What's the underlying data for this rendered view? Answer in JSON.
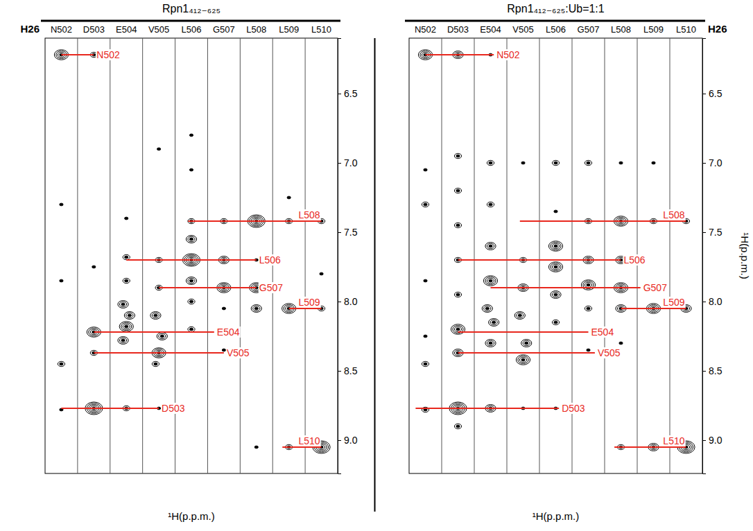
{
  "chart_data": [
    {
      "type": "nmr_strips",
      "title": "Rpn1₄₁₂₋₆₂₅",
      "label": "H26",
      "categories": [
        "N502",
        "D503",
        "E504",
        "V505",
        "L506",
        "G507",
        "L508",
        "L509",
        "L510"
      ],
      "xlim": [
        0,
        9
      ],
      "ylim": [
        6.1,
        9.24
      ],
      "yticks": [
        6.5,
        {
          "value": 7,
          "label": "7.0"
        },
        7.5,
        {
          "value": 8,
          "label": "8.0"
        },
        8.5,
        {
          "value": 9,
          "label": "9.0"
        }
      ],
      "x_axis_label": "¹H(p.p.m.)",
      "peaks": {
        "color": "#000000",
        "x": [
          0.5,
          0.5,
          0.5,
          0.5,
          0.5,
          1.5,
          1.5,
          1.5,
          1.5,
          1.5,
          2.5,
          2.5,
          2.5,
          2.4,
          2.6,
          2.5,
          2.4,
          2.5,
          3.5,
          3.5,
          3.5,
          3.4,
          3.6,
          3.5,
          3.4,
          3.5,
          4.5,
          4.5,
          4.5,
          4.5,
          4.5,
          4.5,
          4.5,
          4.5,
          5.5,
          5.5,
          5.5,
          5.5,
          5.5,
          6.5,
          6.5,
          6.5,
          6.5,
          6.5,
          7.5,
          7.5,
          7.5,
          7.5,
          8.5,
          8.5,
          8.5,
          8.5
        ],
        "y": [
          6.22,
          7.3,
          7.85,
          8.45,
          8.78,
          6.22,
          7.75,
          8.22,
          8.37,
          8.77,
          7.4,
          7.68,
          7.85,
          8.02,
          8.1,
          8.18,
          8.28,
          8.77,
          6.9,
          7.7,
          7.9,
          8.1,
          8.25,
          8.37,
          8.45,
          8.77,
          6.8,
          7.05,
          7.42,
          7.55,
          7.7,
          7.85,
          8.0,
          8.2,
          7.42,
          7.7,
          7.9,
          8.05,
          8.35,
          7.42,
          7.7,
          7.9,
          8.05,
          9.05,
          7.25,
          7.42,
          8.05,
          9.05,
          7.42,
          7.8,
          8.05,
          9.05
        ],
        "intensity": [
          4,
          1,
          1,
          2,
          1,
          2,
          1,
          4,
          2,
          5,
          1,
          2,
          2,
          3,
          3,
          4,
          3,
          2,
          1,
          2,
          2,
          3,
          3,
          4,
          2,
          1,
          1,
          1,
          2,
          3,
          5,
          3,
          2,
          2,
          2,
          3,
          4,
          1,
          1,
          5,
          1,
          4,
          3,
          1,
          1,
          2,
          4,
          2,
          2,
          1,
          2,
          5
        ]
      },
      "assignments": {
        "color": "#e8281e",
        "labels": [
          "N502",
          "L508",
          "L506",
          "G507",
          "L509",
          "E504",
          "V505",
          "D503",
          "L510"
        ],
        "y": [
          6.22,
          7.42,
          7.7,
          7.9,
          8.05,
          8.22,
          8.37,
          8.77,
          9.05
        ],
        "from": [
          0.5,
          4.4,
          2.5,
          3.5,
          7.5,
          1.5,
          1.5,
          0.5,
          7.3
        ],
        "to": [
          1.5,
          8.5,
          6.5,
          6.5,
          8.5,
          5.2,
          5.5,
          3.5,
          8.5
        ]
      }
    },
    {
      "type": "nmr_strips",
      "title": "Rpn1₄₁₂₋₆₂₅:Ub=1:1",
      "label": "H26",
      "categories": [
        "N502",
        "D503",
        "E504",
        "V505",
        "L506",
        "G507",
        "L508",
        "L509",
        "L510"
      ],
      "xlim": [
        0,
        9
      ],
      "ylim": [
        6.1,
        9.24
      ],
      "yticks": [
        6.5,
        {
          "value": 7,
          "label": "7.0"
        },
        7.5,
        {
          "value": 8,
          "label": "8.0"
        },
        8.5,
        {
          "value": 9,
          "label": "9.0"
        }
      ],
      "x_axis_label": "¹H(p.p.m.)",
      "y_axis_label": "¹H(p.p.m.)",
      "peaks": {
        "color": "#000000",
        "x": [
          0.5,
          0.5,
          0.5,
          0.5,
          0.5,
          0.5,
          0.5,
          1.5,
          1.5,
          1.5,
          1.5,
          1.5,
          1.5,
          1.5,
          1.5,
          1.5,
          1.5,
          2.5,
          2.5,
          2.5,
          2.5,
          2.5,
          2.4,
          2.6,
          2.5,
          2.5,
          3.5,
          3.5,
          3.5,
          3.4,
          3.6,
          3.5,
          3.5,
          4.5,
          4.5,
          4.5,
          4.5,
          4.5,
          4.5,
          4.5,
          5.5,
          5.5,
          5.5,
          5.5,
          5.5,
          5.5,
          6.5,
          6.5,
          6.5,
          6.5,
          6.5,
          6.5,
          6.5,
          7.5,
          7.5,
          7.5,
          7.5,
          8.5,
          8.5,
          8.5
        ],
        "y": [
          6.22,
          7.05,
          7.3,
          7.85,
          8.25,
          8.45,
          8.78,
          6.22,
          6.95,
          7.2,
          7.45,
          7.7,
          7.95,
          8.2,
          8.37,
          8.77,
          8.9,
          6.22,
          7.0,
          7.3,
          7.6,
          7.85,
          8.05,
          8.15,
          8.3,
          8.77,
          7.0,
          7.7,
          7.9,
          8.1,
          8.3,
          8.42,
          8.77,
          7.0,
          7.35,
          7.6,
          7.75,
          7.95,
          8.15,
          8.77,
          7.0,
          7.42,
          7.7,
          7.88,
          8.05,
          8.35,
          7.0,
          7.42,
          7.7,
          7.9,
          8.05,
          8.3,
          9.05,
          7.0,
          7.42,
          8.05,
          9.05,
          7.42,
          8.05,
          9.05
        ],
        "intensity": [
          4,
          1,
          2,
          1,
          1,
          2,
          2,
          3,
          2,
          2,
          2,
          2,
          2,
          4,
          3,
          5,
          2,
          1,
          2,
          2,
          3,
          4,
          3,
          3,
          3,
          3,
          1,
          2,
          3,
          3,
          3,
          4,
          1,
          2,
          1,
          4,
          4,
          3,
          2,
          1,
          2,
          2,
          3,
          4,
          2,
          1,
          1,
          4,
          3,
          4,
          3,
          1,
          2,
          1,
          2,
          4,
          3,
          2,
          3,
          5
        ]
      },
      "assignments": {
        "color": "#e8281e",
        "labels": [
          "N502",
          "L508",
          "L506",
          "G507",
          "L509",
          "E504",
          "V505",
          "D503",
          "L510"
        ],
        "y": [
          6.22,
          7.42,
          7.7,
          7.9,
          8.05,
          8.22,
          8.37,
          8.77,
          9.05
        ],
        "from": [
          0.5,
          3.4,
          1.5,
          2.5,
          6.5,
          1.5,
          1.5,
          0.2,
          6.3
        ],
        "to": [
          2.6,
          8.5,
          6.5,
          7.1,
          8.5,
          5.5,
          5.7,
          4.6,
          8.5
        ]
      }
    }
  ]
}
